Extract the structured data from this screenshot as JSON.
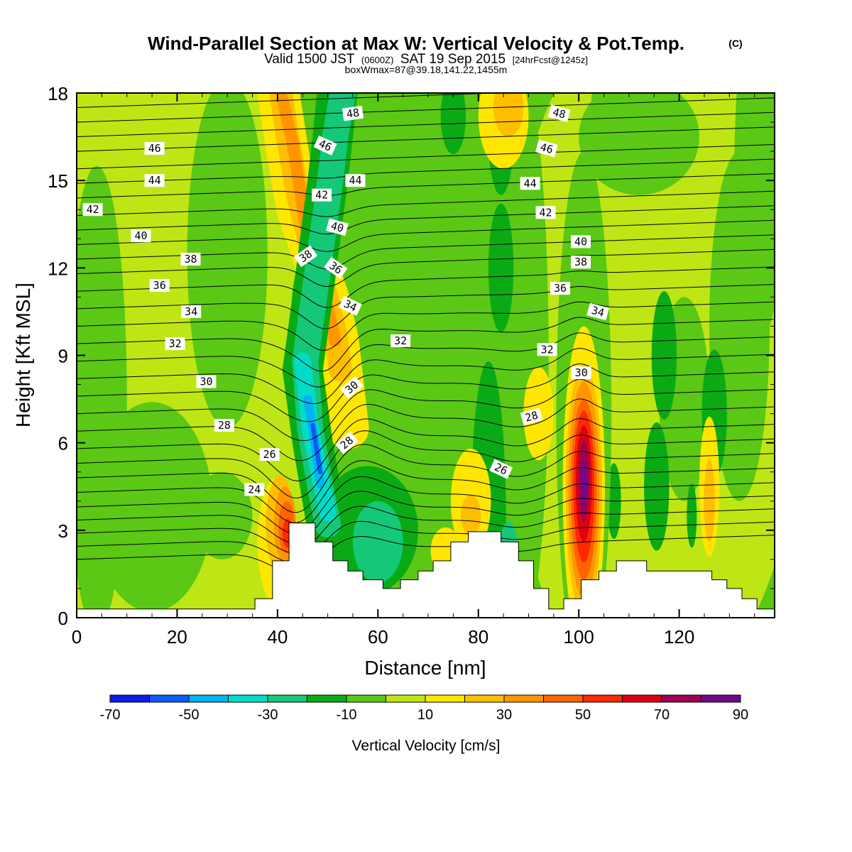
{
  "chart_data": {
    "type": "heatmap",
    "title": {
      "main": "Wind-Parallel Section at Max W: Vertical Velocity & Pot.Temp.",
      "mark": "(C)",
      "valid_a": "Valid 1500 JST",
      "valid_b": "(0600Z)",
      "valid_c": "SAT 19 Sep 2015",
      "valid_d": "[24hrFcst@1245z]",
      "box": "boxWmax=87@39.18,141.22,1455m"
    },
    "xlabel": "Distance [nm]",
    "ylabel": "Height [Kft MSL]",
    "xlim": [
      0,
      139
    ],
    "ylim": [
      0,
      18
    ],
    "xticks": [
      "0",
      "20",
      "40",
      "60",
      "80",
      "100",
      "120"
    ],
    "yticks": [
      "0",
      "3",
      "6",
      "9",
      "12",
      "15",
      "18"
    ],
    "colorbar": {
      "label": "Vertical Velocity [cm/s]",
      "tick_labels": [
        "-70",
        "-50",
        "-30",
        "-10",
        "10",
        "30",
        "50",
        "70",
        "90"
      ],
      "levels": [
        -70,
        -60,
        -50,
        -40,
        -30,
        -20,
        -10,
        0,
        10,
        20,
        30,
        40,
        50,
        60,
        70,
        80,
        90
      ],
      "colors": [
        "#0a1ee8",
        "#0a5cf5",
        "#00b4f0",
        "#00dcc8",
        "#14c878",
        "#0aaa14",
        "#5ac814",
        "#bee614",
        "#ffe600",
        "#ffbe00",
        "#ff9600",
        "#ff6400",
        "#ff2800",
        "#dc0014",
        "#a00050",
        "#6e0a8c"
      ]
    },
    "terrain": {
      "x": [
        0,
        35.5,
        35.5,
        39,
        39,
        42.3,
        42.3,
        47.5,
        47.5,
        51,
        51,
        54,
        54,
        57,
        57,
        61,
        61,
        64.5,
        64.5,
        68,
        68,
        71,
        71,
        74.5,
        74.5,
        78,
        78,
        84.5,
        84.5,
        88,
        88,
        91,
        91,
        94,
        94,
        97,
        97,
        100.5,
        100.5,
        104,
        104,
        107.5,
        107.5,
        113.5,
        113.5,
        126.5,
        126.5,
        129.5,
        129.5,
        132.5,
        132.5,
        135.5,
        135.5,
        139
      ],
      "y": [
        0.3,
        0.3,
        0.65,
        0.65,
        1.95,
        1.95,
        3.25,
        3.25,
        2.6,
        2.6,
        1.95,
        1.95,
        1.6,
        1.6,
        1.3,
        1.3,
        1.0,
        1.0,
        1.3,
        1.3,
        1.6,
        1.6,
        1.95,
        1.95,
        2.6,
        2.6,
        2.95,
        2.95,
        2.6,
        2.6,
        1.95,
        1.95,
        1.0,
        1.0,
        0.3,
        0.3,
        0.65,
        0.65,
        1.3,
        1.3,
        1.6,
        1.6,
        1.95,
        1.95,
        1.6,
        1.6,
        1.3,
        1.3,
        1.0,
        1.0,
        0.65,
        0.65,
        0.3,
        0.3
      ]
    },
    "w_features": [
      {
        "x": 18,
        "y": 9,
        "rx": 34,
        "ry": 12,
        "value": 5
      },
      {
        "x": 115,
        "y": 9,
        "rx": 30,
        "ry": 12,
        "value": 5
      },
      {
        "x": 15,
        "y": 3.8,
        "rx": 12,
        "ry": 3.6,
        "value": -5
      },
      {
        "x": 4,
        "y": 7.5,
        "rx": 6,
        "ry": 8,
        "value": -5
      },
      {
        "x": 30,
        "y": 12.5,
        "rx": 8,
        "ry": 6,
        "value": -5
      },
      {
        "x": 63,
        "y": 8.5,
        "rx": 10,
        "ry": 5.5,
        "value": -5
      },
      {
        "x": 70,
        "y": 14.5,
        "rx": 6,
        "ry": 4,
        "value": -5
      },
      {
        "x": 88,
        "y": 9,
        "rx": 6,
        "ry": 10,
        "value": -5
      },
      {
        "x": 132,
        "y": 10,
        "rx": 6,
        "ry": 6,
        "value": -5
      },
      {
        "x": 121,
        "y": 7.5,
        "rx": 5,
        "ry": 3.5,
        "value": -5
      },
      {
        "x": 58,
        "y": 3,
        "rx": 10,
        "ry": 2.2,
        "value": -12
      },
      {
        "x": 60,
        "y": 2.6,
        "rx": 5,
        "ry": 1.4,
        "value": -22
      },
      {
        "x": 82,
        "y": 3.3,
        "rx": 3.5,
        "ry": 5.5,
        "value": -12
      },
      {
        "x": 86,
        "y": 2,
        "rx": 2,
        "ry": 1.3,
        "value": -22
      },
      {
        "x": 84.5,
        "y": 16.5,
        "rx": 2.5,
        "ry": 2,
        "value": -12
      },
      {
        "x": 75,
        "y": 17.2,
        "rx": 2.5,
        "ry": 1.3,
        "value": -12
      },
      {
        "x": 84.5,
        "y": 12,
        "rx": 2.5,
        "ry": 2.2,
        "value": -12
      },
      {
        "x": 117,
        "y": 9,
        "rx": 2.5,
        "ry": 2.2,
        "value": -12
      },
      {
        "x": 127,
        "y": 7,
        "rx": 2.5,
        "ry": 2.2,
        "value": -12
      },
      {
        "x": 107,
        "y": 4,
        "rx": 1.4,
        "ry": 1.3,
        "value": -12
      },
      {
        "x": 115.5,
        "y": 4.5,
        "rx": 2.5,
        "ry": 2.2,
        "value": -12
      },
      {
        "x": 112,
        "y": 16.5,
        "rx": 12,
        "ry": 2,
        "value": -5
      },
      {
        "x": 136,
        "y": 15.5,
        "rx": 5,
        "ry": 6,
        "value": -5
      },
      {
        "x": 29,
        "y": 3.5,
        "rx": 6,
        "ry": 1.5,
        "value": -5
      },
      {
        "x": 101,
        "y": 7,
        "rx": 5.5,
        "ry": 9,
        "value": -5
      },
      {
        "x": 107,
        "y": 17.5,
        "rx": 4.5,
        "ry": 2.5,
        "value": -5
      },
      {
        "x": 57,
        "y": 17.5,
        "rx": 4.5,
        "ry": 1.8,
        "value": -5
      },
      {
        "x": 65,
        "y": 16.5,
        "rx": 3,
        "ry": 2.5,
        "value": -5
      },
      {
        "x": 45,
        "y": 10.2,
        "rx": 2.3,
        "ry": 2,
        "value": -12
      },
      {
        "x": 126,
        "y": 4.5,
        "rx": 2,
        "ry": 2.4,
        "value": 13
      },
      {
        "x": 126,
        "y": 4,
        "rx": 1.1,
        "ry": 1.4,
        "value": 23
      },
      {
        "x": 122.5,
        "y": 3.5,
        "rx": 1,
        "ry": 1.1,
        "value": -12
      },
      {
        "x": 78.5,
        "y": 4,
        "rx": 4,
        "ry": 1.8,
        "value": 13
      },
      {
        "x": 78.5,
        "y": 3.5,
        "rx": 2,
        "ry": 0.7,
        "value": 23
      },
      {
        "x": 92,
        "y": 7,
        "rx": 3,
        "ry": 1.6,
        "value": 13
      },
      {
        "x": 73.5,
        "y": 2.3,
        "rx": 3,
        "ry": 0.8,
        "value": 13
      },
      {
        "x": 40,
        "y": 2.6,
        "rx": 4,
        "ry": 2.2,
        "value": 13
      },
      {
        "x": 40.5,
        "y": 3.2,
        "rx": 2.8,
        "ry": 1.7,
        "value": 23
      },
      {
        "x": 41.5,
        "y": 3.2,
        "rx": 2.2,
        "ry": 1.3,
        "value": 33
      },
      {
        "x": 41.8,
        "y": 3.1,
        "rx": 1.6,
        "ry": 0.9,
        "value": 43
      },
      {
        "x": 42,
        "y": 2.9,
        "rx": 1.0,
        "ry": 0.5,
        "value": 53
      },
      {
        "x": 101,
        "y": 4.5,
        "rx": 4.2,
        "ry": 5.5,
        "value": 13
      },
      {
        "x": 101,
        "y": 4.4,
        "rx": 3.6,
        "ry": 4.3,
        "value": 23
      },
      {
        "x": 101,
        "y": 4.4,
        "rx": 3.1,
        "ry": 3.7,
        "value": 33
      },
      {
        "x": 101,
        "y": 4.4,
        "rx": 2.6,
        "ry": 3.1,
        "value": 43
      },
      {
        "x": 101,
        "y": 4.5,
        "rx": 2.1,
        "ry": 2.6,
        "value": 53
      },
      {
        "x": 101,
        "y": 4.6,
        "rx": 1.6,
        "ry": 2.0,
        "value": 63
      },
      {
        "x": 101,
        "y": 4.7,
        "rx": 1.1,
        "ry": 1.4,
        "value": 73
      },
      {
        "x": 101,
        "y": 4.6,
        "rx": 0.6,
        "ry": 0.8,
        "value": 85
      },
      {
        "x": 85,
        "y": 17.2,
        "rx": 5,
        "ry": 1.8,
        "value": 13
      },
      {
        "x": 86,
        "y": 17.5,
        "rx": 3,
        "ry": 1.0,
        "value": 23
      }
    ],
    "w_bands": [
      {
        "value": 13,
        "half_width": 4.2,
        "points": [
          [
            40,
            18.2
          ],
          [
            42,
            16
          ],
          [
            44,
            14
          ],
          [
            47,
            12.5
          ],
          [
            50,
            11
          ],
          [
            52,
            9.5
          ],
          [
            53,
            8
          ],
          [
            54,
            6.5
          ]
        ]
      },
      {
        "value": 23,
        "half_width": 2.3,
        "points": [
          [
            40.5,
            18.2
          ],
          [
            42,
            16.5
          ],
          [
            44,
            14.5
          ],
          [
            46.5,
            12.8
          ],
          [
            49.5,
            11.2
          ],
          [
            51.5,
            9.8
          ],
          [
            52.5,
            8.5
          ]
        ]
      },
      {
        "value": 33,
        "half_width": 1.2,
        "points": [
          [
            41,
            17.8
          ],
          [
            43,
            16.3
          ],
          [
            46.5,
            12.5
          ],
          [
            49.5,
            11
          ],
          [
            51.5,
            9.5
          ]
        ]
      },
      {
        "value": -12,
        "half_width": 4.0,
        "points": [
          [
            52,
            18.2
          ],
          [
            51,
            16.5
          ],
          [
            50,
            15
          ],
          [
            47,
            11
          ],
          [
            45,
            8.5
          ],
          [
            47,
            6
          ],
          [
            49,
            4
          ],
          [
            50,
            3
          ]
        ]
      },
      {
        "value": -22,
        "half_width": 2.6,
        "points": [
          [
            53,
            18
          ],
          [
            51.5,
            16.5
          ],
          [
            50.5,
            15
          ],
          [
            45.5,
            8.8
          ],
          [
            46.5,
            6.5
          ],
          [
            48.5,
            4.5
          ],
          [
            50,
            3.2
          ]
        ]
      },
      {
        "value": -35,
        "half_width": 1.7,
        "points": [
          [
            45,
            8.8
          ],
          [
            46.5,
            6.5
          ],
          [
            48.5,
            4.8
          ],
          [
            50,
            3.6
          ]
        ]
      },
      {
        "value": -45,
        "half_width": 0.9,
        "points": [
          [
            46,
            7.5
          ],
          [
            47.5,
            6
          ],
          [
            48.5,
            4.6
          ]
        ]
      },
      {
        "value": -55,
        "half_width": 0.45,
        "points": [
          [
            47,
            6.6
          ],
          [
            48.5,
            5
          ]
        ]
      }
    ],
    "theta_contours": {
      "levels": [
        20,
        21,
        22,
        23,
        24,
        25,
        26,
        27,
        28,
        29,
        30,
        31,
        32,
        33,
        34,
        35,
        36,
        37,
        38,
        39,
        40,
        41,
        42,
        43,
        44,
        45,
        46,
        47,
        48,
        49
      ],
      "left_heights": [
        2.0,
        2.45,
        2.9,
        3.35,
        3.8,
        4.3,
        4.8,
        5.3,
        5.8,
        6.4,
        7.0,
        7.6,
        8.2,
        8.8,
        9.4,
        10.0,
        10.6,
        11.2,
        11.8,
        12.3,
        12.8,
        13.3,
        13.8,
        14.4,
        14.9,
        15.4,
        16.0,
        16.5,
        17.0,
        17.5
      ]
    },
    "contour_labels": [
      {
        "text": "48",
        "x": 55,
        "y": 17.3,
        "angle": -8
      },
      {
        "text": "46",
        "x": 15.5,
        "y": 16.1,
        "angle": 0
      },
      {
        "text": "46",
        "x": 49.5,
        "y": 16.2,
        "angle": 25
      },
      {
        "text": "44",
        "x": 15.5,
        "y": 15.0,
        "angle": 0
      },
      {
        "text": "44",
        "x": 55.5,
        "y": 15.0,
        "angle": 0
      },
      {
        "text": "42",
        "x": 3.2,
        "y": 14.0,
        "angle": 0
      },
      {
        "text": "42",
        "x": 48.8,
        "y": 14.5,
        "angle": 0
      },
      {
        "text": "40",
        "x": 12.8,
        "y": 13.1,
        "angle": 0
      },
      {
        "text": "40",
        "x": 51.9,
        "y": 13.4,
        "angle": 15
      },
      {
        "text": "38",
        "x": 22.7,
        "y": 12.3,
        "angle": 0
      },
      {
        "text": "38",
        "x": 45.6,
        "y": 12.4,
        "angle": -35
      },
      {
        "text": "36",
        "x": 16.5,
        "y": 11.4,
        "angle": 0
      },
      {
        "text": "36",
        "x": 51.6,
        "y": 12.0,
        "angle": 35
      },
      {
        "text": "34",
        "x": 22.8,
        "y": 10.5,
        "angle": 0
      },
      {
        "text": "34",
        "x": 54.5,
        "y": 10.7,
        "angle": 25
      },
      {
        "text": "32",
        "x": 19.6,
        "y": 9.4,
        "angle": 0
      },
      {
        "text": "32",
        "x": 64.5,
        "y": 9.5,
        "angle": 0
      },
      {
        "text": "30",
        "x": 25.8,
        "y": 8.1,
        "angle": 0
      },
      {
        "text": "30",
        "x": 54.8,
        "y": 7.9,
        "angle": -40
      },
      {
        "text": "28",
        "x": 29.4,
        "y": 6.6,
        "angle": 0
      },
      {
        "text": "28",
        "x": 53.8,
        "y": 6.0,
        "angle": -40
      },
      {
        "text": "26",
        "x": 38.4,
        "y": 5.6,
        "angle": 0
      },
      {
        "text": "26",
        "x": 84.5,
        "y": 5.1,
        "angle": 25
      },
      {
        "text": "24",
        "x": 35.4,
        "y": 4.4,
        "angle": 0
      },
      {
        "text": "48",
        "x": 96.1,
        "y": 17.3,
        "angle": 15
      },
      {
        "text": "46",
        "x": 93.6,
        "y": 16.1,
        "angle": 15
      },
      {
        "text": "44",
        "x": 90.3,
        "y": 14.9,
        "angle": 0
      },
      {
        "text": "42",
        "x": 93.4,
        "y": 13.9,
        "angle": 0
      },
      {
        "text": "40",
        "x": 100.4,
        "y": 12.9,
        "angle": 0
      },
      {
        "text": "38",
        "x": 100.4,
        "y": 12.2,
        "angle": 0
      },
      {
        "text": "36",
        "x": 96.3,
        "y": 11.3,
        "angle": 0
      },
      {
        "text": "34",
        "x": 103.8,
        "y": 10.5,
        "angle": 15
      },
      {
        "text": "32",
        "x": 93.7,
        "y": 9.2,
        "angle": 0
      },
      {
        "text": "30",
        "x": 100.5,
        "y": 8.4,
        "angle": 0
      },
      {
        "text": "28",
        "x": 90.6,
        "y": 6.9,
        "angle": -15
      }
    ]
  }
}
